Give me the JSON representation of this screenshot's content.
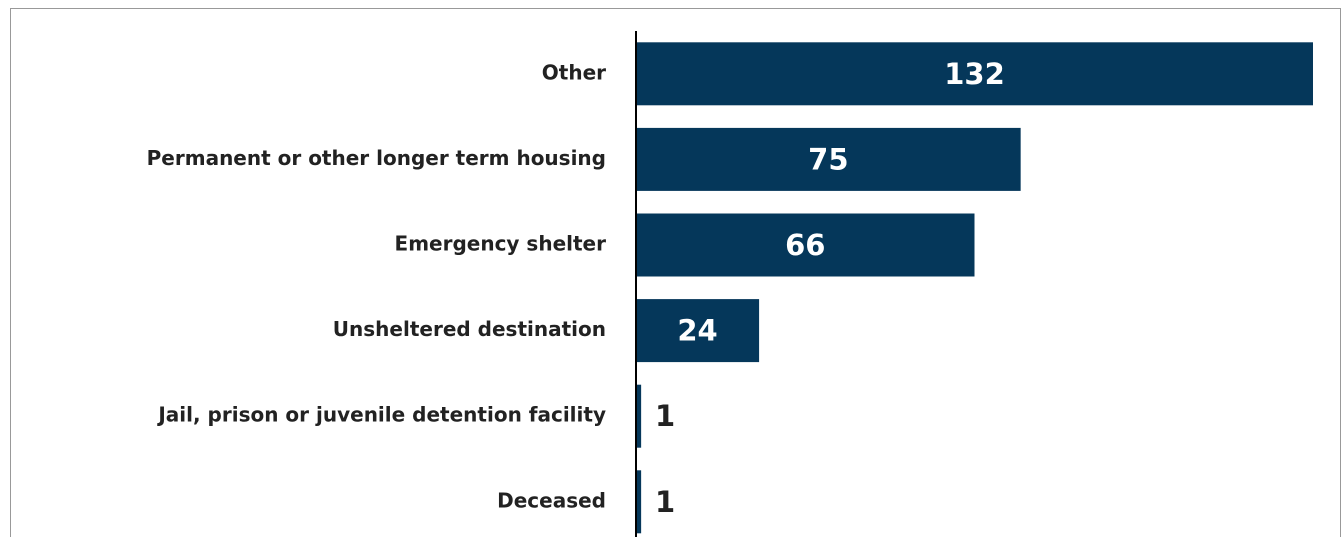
{
  "chart_data": {
    "type": "barh",
    "categories": [
      "Other",
      "Permanent or other longer term housing",
      "Emergency shelter",
      "Unsheltered destination",
      "Jail, prison or juvenile detention facility",
      "Deceased"
    ],
    "values": [
      132,
      75,
      66,
      24,
      1,
      1
    ],
    "color": "#05375a",
    "xlim": [
      0,
      132
    ]
  }
}
